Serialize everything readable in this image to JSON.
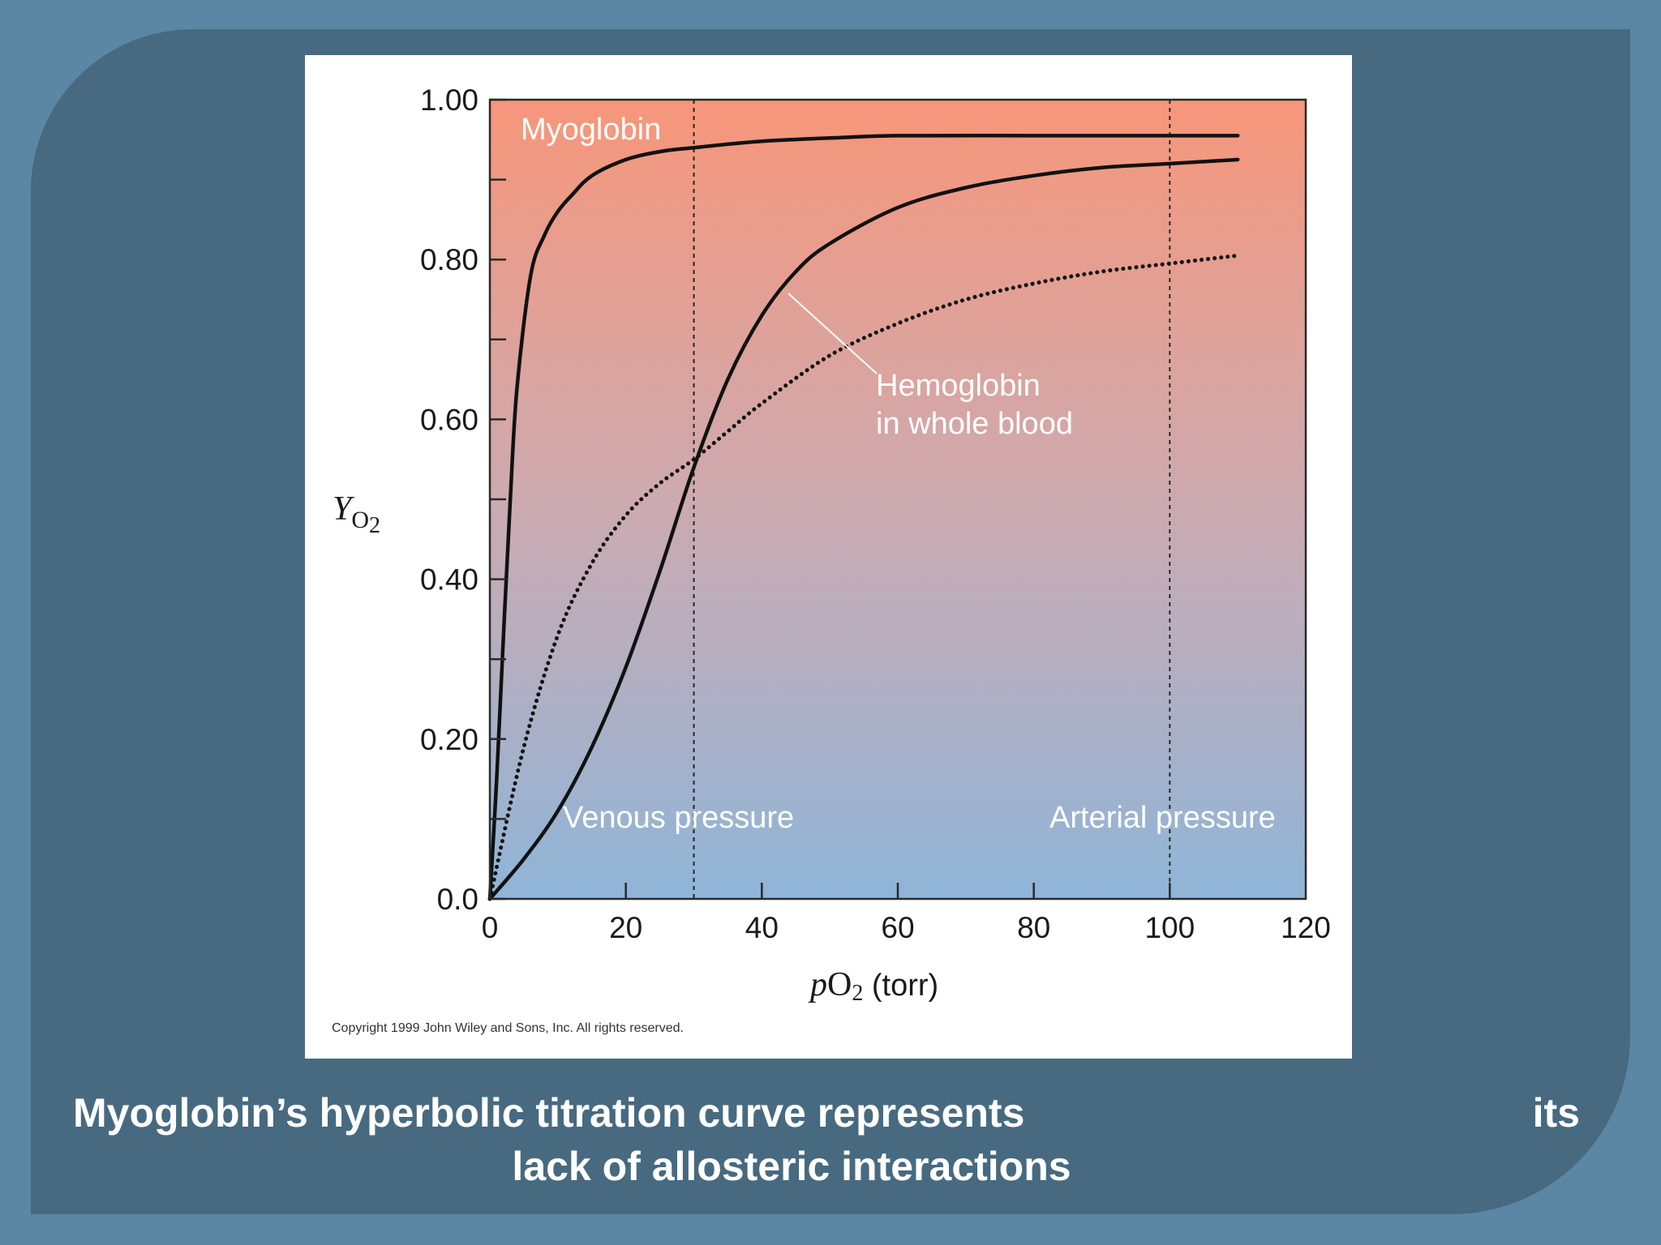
{
  "slide": {
    "colors": {
      "background": "#5b87a4",
      "panel": "#476a80",
      "caption_text": "#ffffff"
    },
    "caption": {
      "line1_left": "Myoglobin’s hyperbolic titration curve represents",
      "line1_right": "its",
      "line2": "lack of allosteric interactions"
    }
  },
  "figure": {
    "copyright": "Copyright 1999 John Wiley and Sons, Inc. All rights reserved."
  },
  "chart_data": {
    "type": "line",
    "title": "",
    "xlabel_italic": "p",
    "xlabel_main": "O",
    "xlabel_sub": "2",
    "xlabel_unit": "(torr)",
    "ylabel_main": "Y",
    "ylabel_sub": "O",
    "ylabel_subsub": "2",
    "xlim": [
      0,
      120
    ],
    "ylim": [
      0,
      1.0
    ],
    "xticks": [
      0,
      20,
      40,
      60,
      80,
      100,
      120
    ],
    "xtick_labels": [
      "0",
      "20",
      "40",
      "60",
      "80",
      "100",
      "120"
    ],
    "yticks": [
      0.0,
      0.2,
      0.4,
      0.6,
      0.8,
      1.0
    ],
    "ytick_labels": [
      "0.0",
      "0.20",
      "0.40",
      "0.60",
      "0.80",
      "1.00"
    ],
    "grid": false,
    "background_gradient": {
      "top": "#f7967a",
      "bottom": "#8fb5d8"
    },
    "reference_lines": [
      {
        "x": 30,
        "label": "Venous pressure"
      },
      {
        "x": 100,
        "label": "Arterial pressure"
      }
    ],
    "series": [
      {
        "name": "Myoglobin",
        "style": "solid",
        "x": [
          0,
          1,
          2,
          3,
          4,
          6,
          8,
          10,
          12,
          15,
          20,
          25,
          30,
          40,
          50,
          60,
          80,
          100,
          110
        ],
        "y": [
          0.0,
          0.15,
          0.33,
          0.5,
          0.64,
          0.78,
          0.83,
          0.86,
          0.88,
          0.905,
          0.925,
          0.935,
          0.94,
          0.948,
          0.952,
          0.955,
          0.955,
          0.955,
          0.955
        ]
      },
      {
        "name": "Hemoglobin",
        "style": "solid",
        "x": [
          0,
          5,
          10,
          15,
          20,
          25,
          30,
          35,
          40,
          45,
          50,
          60,
          70,
          80,
          90,
          100,
          110
        ],
        "y": [
          0.0,
          0.05,
          0.11,
          0.19,
          0.29,
          0.41,
          0.54,
          0.65,
          0.73,
          0.785,
          0.82,
          0.865,
          0.89,
          0.905,
          0.915,
          0.92,
          0.925
        ]
      },
      {
        "name": "",
        "style": "dotted",
        "x": [
          0,
          5,
          10,
          15,
          20,
          25,
          30,
          35,
          40,
          50,
          60,
          70,
          80,
          90,
          100,
          110
        ],
        "y": [
          0.0,
          0.19,
          0.33,
          0.42,
          0.48,
          0.52,
          0.55,
          0.585,
          0.62,
          0.68,
          0.72,
          0.75,
          0.77,
          0.785,
          0.795,
          0.805
        ]
      }
    ],
    "annotations": [
      {
        "text": "Myoglobin"
      },
      {
        "text": "Hemoglobin",
        "line2": "in whole blood"
      }
    ]
  }
}
